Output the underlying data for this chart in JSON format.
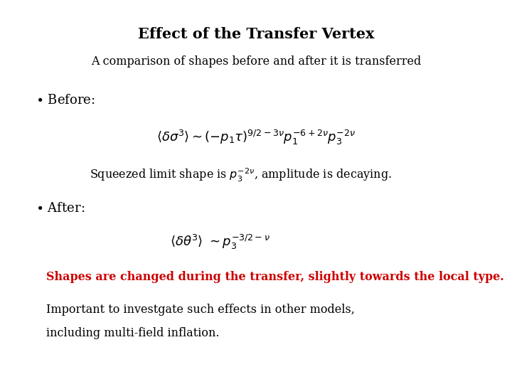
{
  "title": "Effect of the Transfer Vertex",
  "subtitle": "A comparison of shapes before and after it is transferred",
  "squeezed_text": "Squeezed limit shape is ",
  "squeezed_suffix": ", amplitude is decaying.",
  "red_text": "Shapes are changed during the transfer, slightly towards the local type.",
  "note_line1": "Important to investgate such effects in other models,",
  "note_line2": "including multi-field inflation.",
  "bg_color": "#ffffff",
  "title_color": "#000000",
  "text_color": "#000000",
  "red_color": "#cc0000"
}
